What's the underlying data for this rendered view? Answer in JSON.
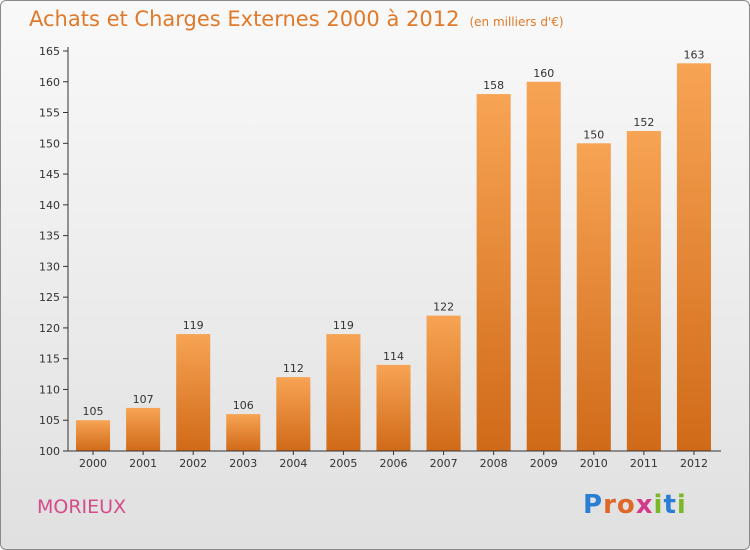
{
  "page": {
    "title": "Achats et Charges Externes 2000 à 2012",
    "unit": "(en milliers d'€)",
    "commune": "MORIEUX",
    "logo": {
      "text": "Proxiti",
      "letters": [
        {
          "ch": "P",
          "color": "#2a7fd4"
        },
        {
          "ch": "r",
          "color": "#e0662a"
        },
        {
          "ch": "o",
          "color": "#e0662a"
        },
        {
          "ch": "x",
          "color": "#d43a8a"
        },
        {
          "ch": "i",
          "color": "#7ab828"
        },
        {
          "ch": "t",
          "color": "#2a7fd4"
        },
        {
          "ch": "i",
          "color": "#7ab828"
        }
      ]
    }
  },
  "chart_data": {
    "type": "bar",
    "title": "Achats et Charges Externes 2000 à 2012",
    "subtitle": "(en milliers d'€)",
    "categories": [
      "2000",
      "2001",
      "2002",
      "2003",
      "2004",
      "2005",
      "2006",
      "2007",
      "2008",
      "2009",
      "2010",
      "2011",
      "2012"
    ],
    "values": [
      105,
      107,
      119,
      106,
      112,
      119,
      114,
      122,
      158,
      160,
      150,
      152,
      163
    ],
    "ylim": [
      100,
      165
    ],
    "yticks": [
      100,
      105,
      110,
      115,
      120,
      125,
      130,
      135,
      140,
      145,
      150,
      155,
      160,
      165
    ],
    "grid": false,
    "legend": "none",
    "bar_color_top": "#f7a454",
    "bar_color_bottom": "#d06a18",
    "axis_color": "#333333"
  }
}
